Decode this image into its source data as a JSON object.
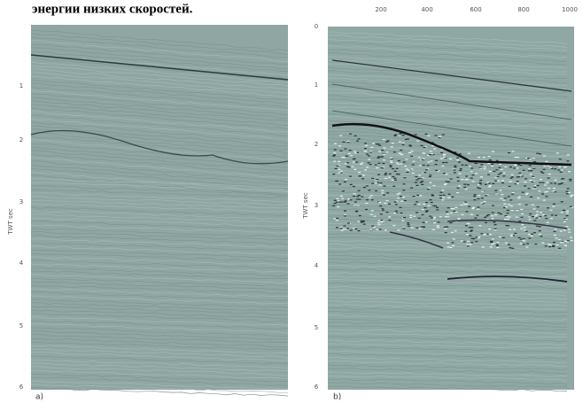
{
  "caption": "энергии низких скоростей.",
  "panels": [
    {
      "label": "a)",
      "y_label": "TWT sec",
      "y_ticks": [
        "1",
        "2",
        "3",
        "4",
        "5",
        "6"
      ],
      "x_ticks": []
    },
    {
      "label": "b)",
      "y_label": "TWT sec",
      "y_ticks": [
        "0",
        "1",
        "2",
        "3",
        "4",
        "5",
        "6"
      ],
      "x_ticks": [
        "200",
        "400",
        "600",
        "800",
        "1000"
      ]
    }
  ]
}
